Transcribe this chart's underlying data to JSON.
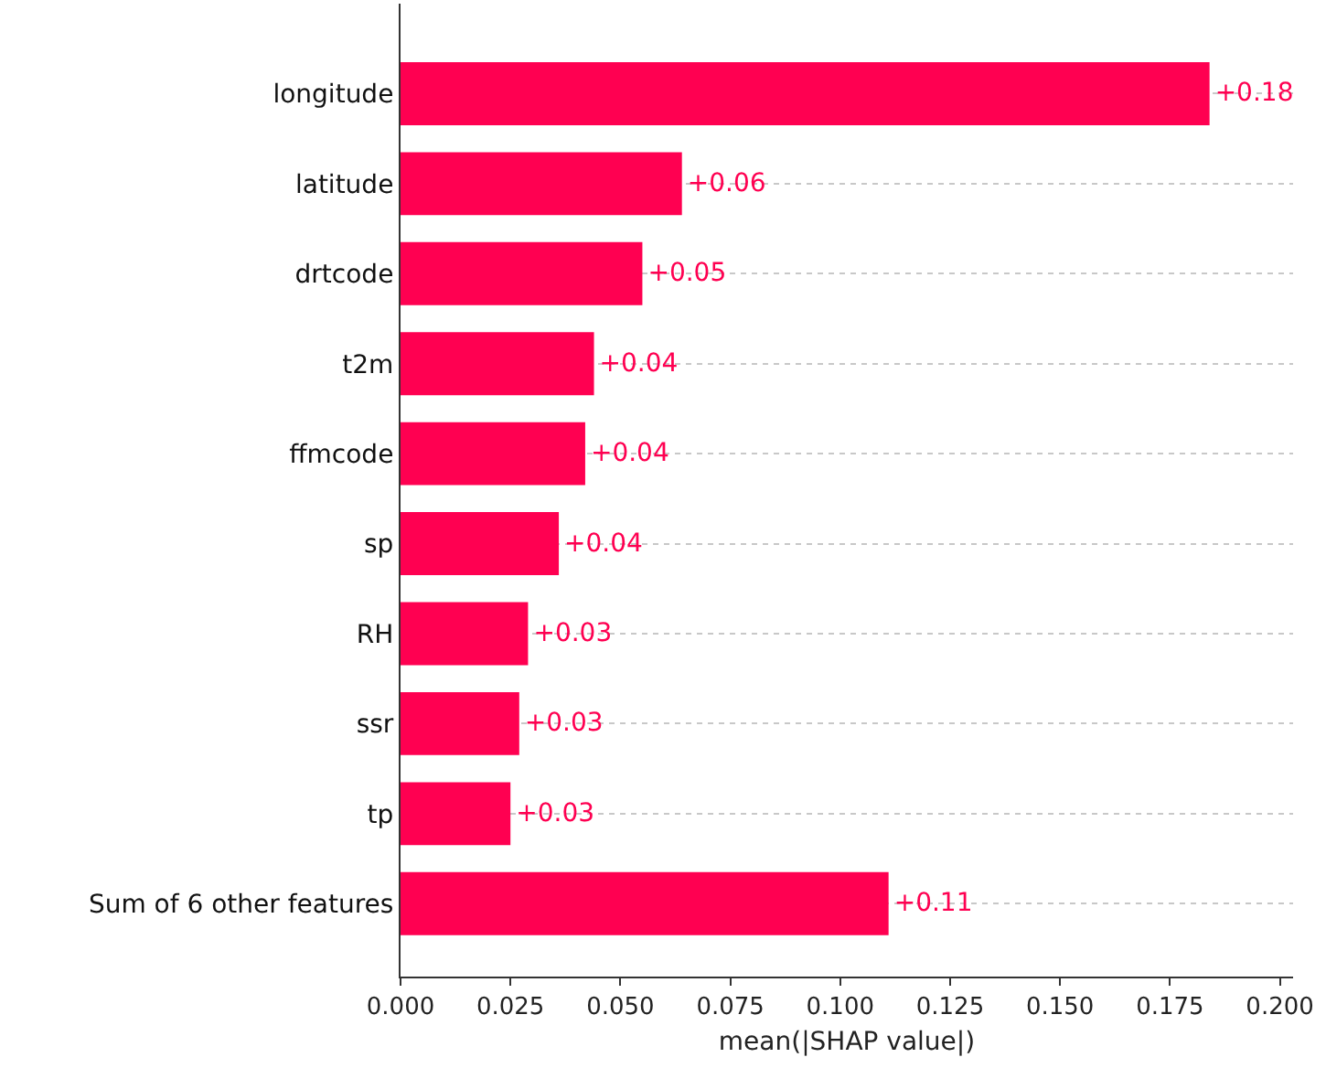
{
  "chart_data": {
    "type": "bar",
    "orientation": "horizontal",
    "xlabel": "mean(|SHAP value|)",
    "categories": [
      "longitude",
      "latitude",
      "drtcode",
      "t2m",
      "ffmcode",
      "sp",
      "RH",
      "ssr",
      "tp",
      "Sum of 6 other features"
    ],
    "values": [
      0.184,
      0.064,
      0.055,
      0.044,
      0.042,
      0.036,
      0.029,
      0.027,
      0.025,
      0.111
    ],
    "value_labels": [
      "+0.18",
      "+0.06",
      "+0.05",
      "+0.04",
      "+0.04",
      "+0.04",
      "+0.03",
      "+0.03",
      "+0.03",
      "+0.11"
    ],
    "color": "#ff0051",
    "xlim": [
      0,
      0.203
    ],
    "xticks": [
      {
        "value": 0,
        "label": "0.000"
      },
      {
        "value": 0.025,
        "label": "0.025"
      },
      {
        "value": 0.05,
        "label": "0.050"
      },
      {
        "value": 0.075,
        "label": "0.075"
      },
      {
        "value": 0.1,
        "label": "0.100"
      },
      {
        "value": 0.125,
        "label": "0.125"
      },
      {
        "value": 0.15,
        "label": "0.150"
      },
      {
        "value": 0.175,
        "label": "0.175"
      },
      {
        "value": 0.2,
        "label": "0.200"
      }
    ],
    "grid": "y",
    "legend": false
  }
}
